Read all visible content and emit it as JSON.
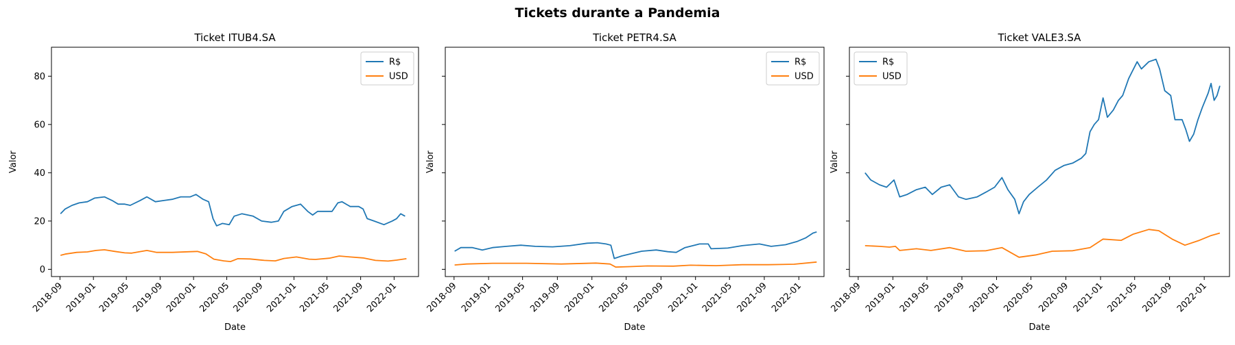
{
  "figure": {
    "suptitle": "Tickets durante a Pandemia"
  },
  "colors": {
    "brl": "#1f77b4",
    "usd": "#ff7f0e"
  },
  "chart_data": [
    {
      "type": "line",
      "title": "Ticket ITUB4.SA",
      "xlabel": "Date",
      "ylabel": "Valor",
      "xlim": [
        "2018-08-01",
        "2022-03-31"
      ],
      "ylim": [
        -3,
        92
      ],
      "yticks": [
        0,
        20,
        40,
        60,
        80
      ],
      "xticks": [
        "2018-09",
        "2019-01",
        "2019-05",
        "2019-09",
        "2020-01",
        "2020-05",
        "2020-09",
        "2021-01",
        "2021-05",
        "2021-09",
        "2022-01"
      ],
      "legend": "upper right",
      "show_y_tick_labels": true,
      "series": [
        {
          "name": "R$",
          "color": "#1f77b4",
          "points": [
            [
              "2018-09-03",
              23
            ],
            [
              "2018-09-20",
              25
            ],
            [
              "2018-10-15",
              26.5
            ],
            [
              "2018-11-10",
              27.5
            ],
            [
              "2018-12-10",
              28
            ],
            [
              "2019-01-05",
              29.5
            ],
            [
              "2019-02-10",
              30
            ],
            [
              "2019-03-10",
              28.5
            ],
            [
              "2019-04-01",
              27
            ],
            [
              "2019-04-25",
              27
            ],
            [
              "2019-05-15",
              26.5
            ],
            [
              "2019-06-20",
              28.5
            ],
            [
              "2019-07-15",
              30
            ],
            [
              "2019-08-15",
              28
            ],
            [
              "2019-09-15",
              28.5
            ],
            [
              "2019-10-15",
              29
            ],
            [
              "2019-11-15",
              30
            ],
            [
              "2019-12-20",
              30
            ],
            [
              "2020-01-10",
              31
            ],
            [
              "2020-02-05",
              29
            ],
            [
              "2020-02-25",
              28
            ],
            [
              "2020-03-12",
              21
            ],
            [
              "2020-03-25",
              18
            ],
            [
              "2020-04-15",
              19
            ],
            [
              "2020-05-10",
              18.5
            ],
            [
              "2020-05-28",
              22
            ],
            [
              "2020-06-25",
              23
            ],
            [
              "2020-08-05",
              22
            ],
            [
              "2020-09-05",
              20
            ],
            [
              "2020-10-10",
              19.5
            ],
            [
              "2020-11-05",
              20
            ],
            [
              "2020-11-25",
              24
            ],
            [
              "2020-12-25",
              26
            ],
            [
              "2021-01-25",
              27
            ],
            [
              "2021-02-20",
              24
            ],
            [
              "2021-03-10",
              22.5
            ],
            [
              "2021-03-28",
              24
            ],
            [
              "2021-04-25",
              24
            ],
            [
              "2021-05-20",
              24
            ],
            [
              "2021-06-10",
              27.5
            ],
            [
              "2021-06-25",
              28
            ],
            [
              "2021-07-25",
              26
            ],
            [
              "2021-08-25",
              26
            ],
            [
              "2021-09-10",
              25
            ],
            [
              "2021-09-25",
              21
            ],
            [
              "2021-10-20",
              20
            ],
            [
              "2021-11-25",
              18.5
            ],
            [
              "2021-12-25",
              20
            ],
            [
              "2022-01-10",
              21
            ],
            [
              "2022-01-25",
              23
            ],
            [
              "2022-02-10",
              22
            ]
          ]
        },
        {
          "name": "USD",
          "color": "#ff7f0e",
          "points": [
            [
              "2018-09-03",
              5.8
            ],
            [
              "2018-09-20",
              6.3
            ],
            [
              "2018-11-01",
              7
            ],
            [
              "2018-12-10",
              7.2
            ],
            [
              "2019-01-10",
              7.8
            ],
            [
              "2019-02-10",
              8.1
            ],
            [
              "2019-03-20",
              7.4
            ],
            [
              "2019-04-25",
              6.8
            ],
            [
              "2019-05-20",
              6.7
            ],
            [
              "2019-07-15",
              7.8
            ],
            [
              "2019-08-20",
              7
            ],
            [
              "2019-10-15",
              7
            ],
            [
              "2019-12-20",
              7.3
            ],
            [
              "2020-01-15",
              7.4
            ],
            [
              "2020-02-15",
              6.4
            ],
            [
              "2020-03-15",
              4.2
            ],
            [
              "2020-04-20",
              3.5
            ],
            [
              "2020-05-15",
              3.2
            ],
            [
              "2020-06-10",
              4.4
            ],
            [
              "2020-07-25",
              4.3
            ],
            [
              "2020-09-15",
              3.7
            ],
            [
              "2020-10-25",
              3.5
            ],
            [
              "2020-11-25",
              4.5
            ],
            [
              "2021-01-10",
              5.1
            ],
            [
              "2021-02-25",
              4.2
            ],
            [
              "2021-03-20",
              4.1
            ],
            [
              "2021-05-10",
              4.6
            ],
            [
              "2021-06-15",
              5.5
            ],
            [
              "2021-07-25",
              5.1
            ],
            [
              "2021-09-10",
              4.7
            ],
            [
              "2021-10-25",
              3.7
            ],
            [
              "2021-12-10",
              3.4
            ],
            [
              "2022-01-10",
              3.8
            ],
            [
              "2022-02-15",
              4.4
            ]
          ]
        }
      ]
    },
    {
      "type": "line",
      "title": "Ticket PETR4.SA",
      "xlabel": "Date",
      "ylabel": "Valor",
      "xlim": [
        "2018-08-01",
        "2022-03-31"
      ],
      "ylim": [
        -3,
        92
      ],
      "yticks": [
        0,
        20,
        40,
        60,
        80
      ],
      "xticks": [
        "2018-09",
        "2019-01",
        "2019-05",
        "2019-09",
        "2020-01",
        "2020-05",
        "2020-09",
        "2021-01",
        "2021-05",
        "2021-09",
        "2022-01"
      ],
      "legend": "upper right",
      "show_y_tick_labels": false,
      "series": [
        {
          "name": "R$",
          "color": "#1f77b4",
          "points": [
            [
              "2018-09-03",
              7.5
            ],
            [
              "2018-09-25",
              9
            ],
            [
              "2018-11-05",
              9
            ],
            [
              "2018-12-10",
              8
            ],
            [
              "2019-01-15",
              9
            ],
            [
              "2019-03-05",
              9.5
            ],
            [
              "2019-04-25",
              10
            ],
            [
              "2019-06-15",
              9.5
            ],
            [
              "2019-08-15",
              9.3
            ],
            [
              "2019-10-15",
              9.8
            ],
            [
              "2019-12-15",
              10.8
            ],
            [
              "2020-01-20",
              11
            ],
            [
              "2020-02-20",
              10.5
            ],
            [
              "2020-03-08",
              10
            ],
            [
              "2020-03-20",
              4.5
            ],
            [
              "2020-04-15",
              5.5
            ],
            [
              "2020-05-20",
              6.5
            ],
            [
              "2020-06-25",
              7.5
            ],
            [
              "2020-08-15",
              8
            ],
            [
              "2020-09-25",
              7.3
            ],
            [
              "2020-10-25",
              7
            ],
            [
              "2020-11-25",
              9
            ],
            [
              "2021-01-15",
              10.5
            ],
            [
              "2021-02-15",
              10.5
            ],
            [
              "2021-02-25",
              8.5
            ],
            [
              "2021-04-25",
              8.8
            ],
            [
              "2021-06-15",
              9.8
            ],
            [
              "2021-08-15",
              10.5
            ],
            [
              "2021-09-25",
              9.5
            ],
            [
              "2021-11-15",
              10.2
            ],
            [
              "2021-12-25",
              11.5
            ],
            [
              "2022-01-25",
              13
            ],
            [
              "2022-02-20",
              15
            ],
            [
              "2022-03-05",
              15.5
            ]
          ]
        },
        {
          "name": "USD",
          "color": "#ff7f0e",
          "points": [
            [
              "2018-09-03",
              1.8
            ],
            [
              "2018-10-15",
              2.2
            ],
            [
              "2019-01-15",
              2.5
            ],
            [
              "2019-05-15",
              2.5
            ],
            [
              "2019-09-15",
              2.2
            ],
            [
              "2020-01-15",
              2.6
            ],
            [
              "2020-03-05",
              2.2
            ],
            [
              "2020-03-25",
              0.9
            ],
            [
              "2020-05-15",
              1.1
            ],
            [
              "2020-07-15",
              1.4
            ],
            [
              "2020-10-15",
              1.3
            ],
            [
              "2020-12-15",
              1.7
            ],
            [
              "2021-03-15",
              1.5
            ],
            [
              "2021-06-15",
              1.9
            ],
            [
              "2021-09-15",
              1.9
            ],
            [
              "2021-12-15",
              2.1
            ],
            [
              "2022-03-05",
              3
            ]
          ]
        }
      ]
    },
    {
      "type": "line",
      "title": "Ticket VALE3.SA",
      "xlabel": "Date",
      "ylabel": "Valor",
      "xlim": [
        "2018-08-01",
        "2022-03-31"
      ],
      "ylim": [
        -3,
        92
      ],
      "yticks": [
        0,
        20,
        40,
        60,
        80
      ],
      "xticks": [
        "2018-09",
        "2019-01",
        "2019-05",
        "2019-09",
        "2020-01",
        "2020-05",
        "2020-09",
        "2021-01",
        "2021-05",
        "2021-09",
        "2022-01"
      ],
      "legend": "upper left",
      "show_y_tick_labels": false,
      "series": [
        {
          "name": "R$",
          "color": "#1f77b4",
          "points": [
            [
              "2018-09-25",
              40
            ],
            [
              "2018-10-15",
              37
            ],
            [
              "2018-11-15",
              35
            ],
            [
              "2018-12-10",
              34
            ],
            [
              "2019-01-05",
              37
            ],
            [
              "2019-01-25",
              30
            ],
            [
              "2019-02-20",
              31
            ],
            [
              "2019-03-25",
              33
            ],
            [
              "2019-04-25",
              34
            ],
            [
              "2019-05-20",
              31
            ],
            [
              "2019-06-20",
              34
            ],
            [
              "2019-07-20",
              35
            ],
            [
              "2019-08-20",
              30
            ],
            [
              "2019-09-15",
              29
            ],
            [
              "2019-10-25",
              30
            ],
            [
              "2019-11-25",
              32
            ],
            [
              "2019-12-25",
              34
            ],
            [
              "2020-01-20",
              38
            ],
            [
              "2020-02-10",
              33
            ],
            [
              "2020-03-05",
              29
            ],
            [
              "2020-03-20",
              23
            ],
            [
              "2020-04-05",
              28
            ],
            [
              "2020-04-25",
              31
            ],
            [
              "2020-05-25",
              34
            ],
            [
              "2020-06-25",
              37
            ],
            [
              "2020-07-25",
              41
            ],
            [
              "2020-08-25",
              43
            ],
            [
              "2020-09-25",
              44
            ],
            [
              "2020-10-25",
              46
            ],
            [
              "2020-11-10",
              48
            ],
            [
              "2020-11-25",
              57
            ],
            [
              "2020-12-10",
              60
            ],
            [
              "2020-12-25",
              62
            ],
            [
              "2021-01-10",
              71
            ],
            [
              "2021-01-25",
              63
            ],
            [
              "2021-02-15",
              66
            ],
            [
              "2021-03-05",
              70
            ],
            [
              "2021-03-20",
              72
            ],
            [
              "2021-04-10",
              79
            ],
            [
              "2021-05-10",
              86
            ],
            [
              "2021-05-25",
              83
            ],
            [
              "2021-06-20",
              86
            ],
            [
              "2021-07-15",
              87
            ],
            [
              "2021-07-28",
              83
            ],
            [
              "2021-08-15",
              74
            ],
            [
              "2021-09-05",
              72
            ],
            [
              "2021-09-20",
              62
            ],
            [
              "2021-10-15",
              62
            ],
            [
              "2021-10-28",
              58
            ],
            [
              "2021-11-10",
              53
            ],
            [
              "2021-11-25",
              56
            ],
            [
              "2021-12-10",
              62
            ],
            [
              "2021-12-25",
              67
            ],
            [
              "2022-01-15",
              73
            ],
            [
              "2022-01-25",
              77
            ],
            [
              "2022-02-05",
              70
            ],
            [
              "2022-02-15",
              72
            ],
            [
              "2022-02-25",
              76
            ]
          ]
        },
        {
          "name": "USD",
          "color": "#ff7f0e",
          "points": [
            [
              "2018-09-25",
              9.8
            ],
            [
              "2018-11-15",
              9.5
            ],
            [
              "2018-12-20",
              9.2
            ],
            [
              "2019-01-10",
              9.5
            ],
            [
              "2019-01-25",
              7.8
            ],
            [
              "2019-03-25",
              8.5
            ],
            [
              "2019-05-15",
              7.8
            ],
            [
              "2019-07-20",
              9
            ],
            [
              "2019-09-15",
              7.5
            ],
            [
              "2019-11-25",
              7.7
            ],
            [
              "2020-01-20",
              9
            ],
            [
              "2020-03-20",
              5
            ],
            [
              "2020-05-20",
              6
            ],
            [
              "2020-07-15",
              7.5
            ],
            [
              "2020-09-25",
              7.7
            ],
            [
              "2020-11-25",
              9
            ],
            [
              "2021-01-10",
              12.5
            ],
            [
              "2021-03-15",
              12
            ],
            [
              "2021-04-25",
              14.5
            ],
            [
              "2021-06-20",
              16.5
            ],
            [
              "2021-07-25",
              16
            ],
            [
              "2021-09-10",
              12.5
            ],
            [
              "2021-10-25",
              10
            ],
            [
              "2021-12-15",
              12
            ],
            [
              "2022-01-25",
              14
            ],
            [
              "2022-02-25",
              15
            ]
          ]
        }
      ]
    }
  ]
}
